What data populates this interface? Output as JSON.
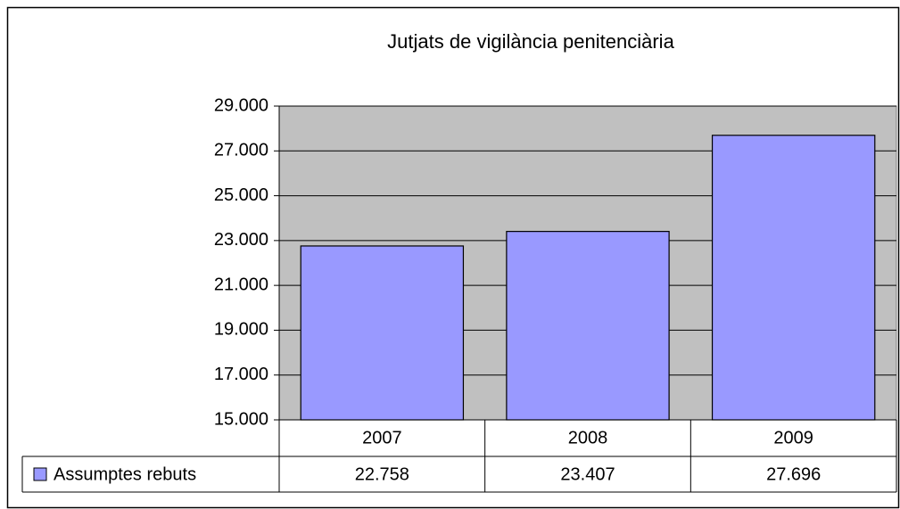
{
  "chart_data": {
    "type": "bar",
    "title": "Jutjats de vigilància penitenciària",
    "categories": [
      "2007",
      "2008",
      "2009"
    ],
    "series": [
      {
        "name": "Assumptes rebuts",
        "color": "#9999ff",
        "values": [
          22758,
          23407,
          27696
        ],
        "value_labels": [
          "22.758",
          "23.407",
          "27.696"
        ]
      }
    ],
    "ylim": [
      15000,
      29000
    ],
    "yticks": [
      {
        "value": 15000,
        "label": "15.000"
      },
      {
        "value": 17000,
        "label": "17.000"
      },
      {
        "value": 19000,
        "label": "19.000"
      },
      {
        "value": 21000,
        "label": "21.000"
      },
      {
        "value": 23000,
        "label": "23.000"
      },
      {
        "value": 25000,
        "label": "25.000"
      },
      {
        "value": 27000,
        "label": "27.000"
      },
      {
        "value": 29000,
        "label": "29.000"
      }
    ],
    "grid": true,
    "plot_background": "#c0c0c0"
  }
}
